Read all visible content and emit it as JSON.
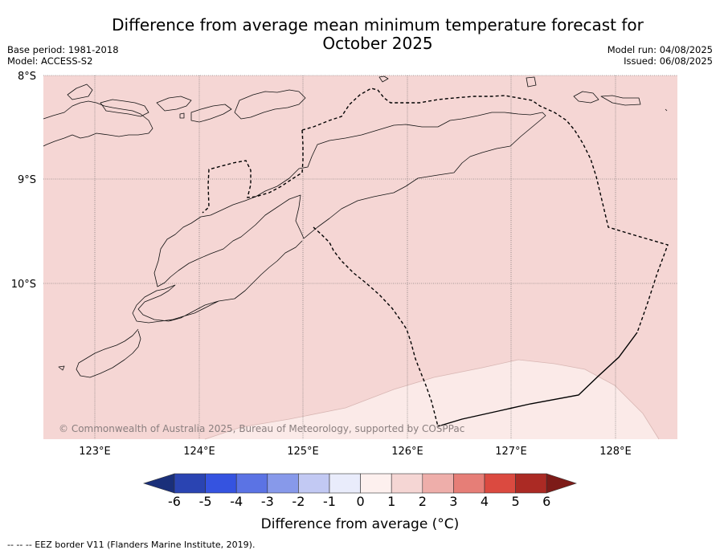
{
  "title_line1": "Difference from average mean minimum temperature forecast for",
  "title_line2": "October 2025",
  "meta_left": {
    "base_period": "Base period: 1981-2018",
    "model": "Model: ACCESS-S2"
  },
  "meta_right": {
    "model_run": "Model run: 04/08/2025",
    "issued": "Issued: 06/08/2025"
  },
  "map": {
    "lon_labels": [
      "123°E",
      "124°E",
      "125°E",
      "126°E",
      "127°E",
      "128°E"
    ],
    "lat_labels": [
      "8°S",
      "9°S",
      "10°S"
    ],
    "credit": "© Commonwealth of Australia 2025, Bureau of Meteorology, supported by COSPPac",
    "fill_colors": {
      "main": "#f5d6d4",
      "lower": "#fbeae8"
    }
  },
  "colorbar": {
    "tick_labels": [
      "-6",
      "-5",
      "-4",
      "-3",
      "-2",
      "-1",
      "0",
      "1",
      "2",
      "3",
      "4",
      "5",
      "6"
    ],
    "colors": [
      "#1a2f7a",
      "#2a44b2",
      "#3553e0",
      "#5b73e4",
      "#8799ea",
      "#c2c9f3",
      "#e9ecfb",
      "#fdf0ee",
      "#f5d6d4",
      "#eeaeaa",
      "#e67e77",
      "#db4a40",
      "#ab2a24",
      "#7d1b18"
    ],
    "label": "Difference from average (°C)"
  },
  "footnote": "--  --  -- EEZ border V11 (Flanders Marine Institute, 2019)."
}
